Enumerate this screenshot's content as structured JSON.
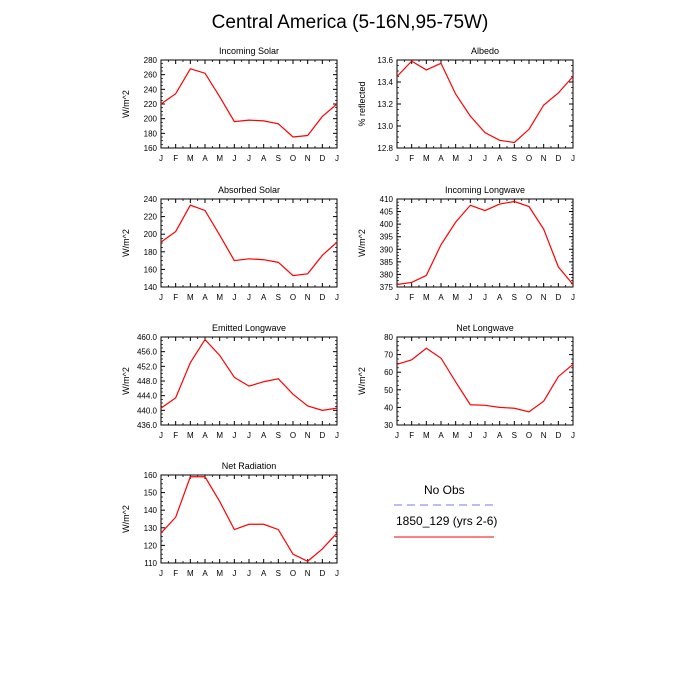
{
  "title": "Central America (5-16N,95-75W)",
  "months": [
    "J",
    "F",
    "M",
    "A",
    "M",
    "J",
    "J",
    "A",
    "S",
    "O",
    "N",
    "D",
    "J"
  ],
  "colors": {
    "model": "#ff0000",
    "obs": "#7777ee",
    "axis": "#000000"
  },
  "legend": {
    "obs_label": "No Obs",
    "model_label": "1850_129 (yrs 2-6)"
  },
  "chart_data": [
    {
      "type": "line",
      "title": "Incoming Solar",
      "ylabel": "W/m^2",
      "ylim": [
        160,
        280
      ],
      "yticks": [
        160,
        180,
        200,
        220,
        240,
        260,
        280
      ],
      "ytick_labels": [
        "160",
        "180",
        "200",
        "220",
        "240",
        "260",
        "280"
      ],
      "series": [
        {
          "values": [
            220,
            234,
            268,
            262,
            230,
            196,
            198,
            197,
            193,
            175,
            177,
            203,
            220
          ]
        }
      ]
    },
    {
      "type": "line",
      "title": "Albedo",
      "ylabel": "% reflected",
      "ylim": [
        12.8,
        13.6
      ],
      "yticks": [
        12.8,
        13.0,
        13.2,
        13.4,
        13.6
      ],
      "ytick_labels": [
        "12.8",
        "13.0",
        "13.2",
        "13.4",
        "13.6"
      ],
      "series": [
        {
          "values": [
            13.45,
            13.59,
            13.51,
            13.57,
            13.29,
            13.09,
            12.94,
            12.87,
            12.85,
            12.97,
            13.19,
            13.3,
            13.45
          ]
        }
      ]
    },
    {
      "type": "line",
      "title": "Absorbed Solar",
      "ylabel": "W/m^2",
      "ylim": [
        140,
        240
      ],
      "yticks": [
        140,
        160,
        180,
        200,
        220,
        240
      ],
      "ytick_labels": [
        "140",
        "160",
        "180",
        "200",
        "220",
        "240"
      ],
      "series": [
        {
          "values": [
            191,
            203,
            233,
            227,
            199,
            170,
            172,
            171,
            168,
            153,
            155,
            176,
            191
          ]
        }
      ]
    },
    {
      "type": "line",
      "title": "Incoming Longwave",
      "ylabel": "W/m^2",
      "ylim": [
        375,
        410
      ],
      "yticks": [
        375,
        380,
        385,
        390,
        395,
        400,
        405,
        410
      ],
      "ytick_labels": [
        "375",
        "380",
        "385",
        "390",
        "395",
        "400",
        "405",
        "410"
      ],
      "series": [
        {
          "values": [
            376.0,
            376.8,
            379.6,
            391.8,
            400.8,
            407.5,
            405.4,
            408.0,
            409.0,
            407.0,
            398.0,
            383.0,
            376.0
          ]
        }
      ]
    },
    {
      "type": "line",
      "title": "Emitted Longwave",
      "ylabel": "W/m^2",
      "ylim": [
        436.0,
        460.0
      ],
      "yticks": [
        436,
        440,
        444,
        448,
        452,
        456,
        460
      ],
      "ytick_labels": [
        "436.0",
        "440.0",
        "444.0",
        "448.0",
        "452.0",
        "456.0",
        "460.0"
      ],
      "series": [
        {
          "values": [
            440.6,
            443.4,
            453.0,
            459.3,
            455.0,
            449.0,
            446.6,
            447.8,
            448.6,
            444.4,
            441.2,
            440.0,
            440.6
          ]
        }
      ]
    },
    {
      "type": "line",
      "title": "Net Longwave",
      "ylabel": "W/m^2",
      "ylim": [
        30,
        80
      ],
      "yticks": [
        30,
        40,
        50,
        60,
        70,
        80
      ],
      "ytick_labels": [
        "30",
        "40",
        "50",
        "60",
        "70",
        "80"
      ],
      "series": [
        {
          "values": [
            64.5,
            67,
            73.6,
            68,
            54.5,
            41.5,
            41.2,
            40,
            39.5,
            37.5,
            43.5,
            57.5,
            64.5
          ]
        }
      ]
    },
    {
      "type": "line",
      "title": "Net Radiation",
      "ylabel": "W/m^2",
      "ylim": [
        110,
        160
      ],
      "yticks": [
        110,
        120,
        130,
        140,
        150,
        160
      ],
      "ytick_labels": [
        "110",
        "120",
        "130",
        "140",
        "150",
        "160"
      ],
      "series": [
        {
          "values": [
            127,
            136,
            159,
            159,
            145,
            129,
            132,
            132,
            129,
            115,
            111,
            118,
            127
          ]
        }
      ]
    }
  ]
}
